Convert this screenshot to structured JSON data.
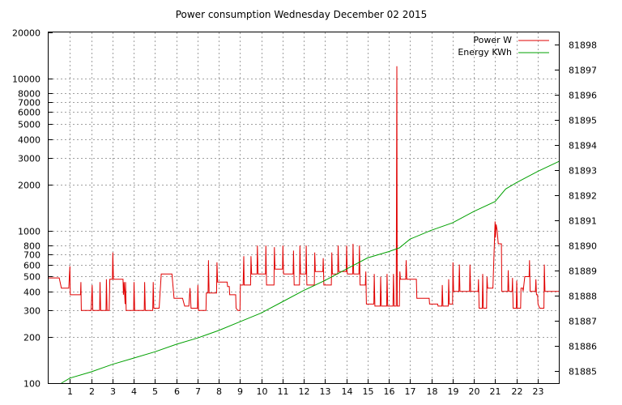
{
  "chart_data": {
    "type": "line",
    "title": "Power consumption Wednesday December 02 2015",
    "x": {
      "range": [
        0,
        24
      ],
      "ticks": [
        1,
        2,
        3,
        4,
        5,
        6,
        7,
        8,
        9,
        10,
        11,
        12,
        13,
        14,
        15,
        16,
        17,
        18,
        19,
        20,
        21,
        22,
        23
      ],
      "grid": true
    },
    "y_left": {
      "scale": "log",
      "range": [
        100,
        20000
      ],
      "ticks": [
        100,
        200,
        300,
        400,
        500,
        600,
        700,
        800,
        1000,
        2000,
        3000,
        4000,
        5000,
        6000,
        7000,
        8000,
        10000,
        20000
      ],
      "grid": true
    },
    "y_right": {
      "scale": "linear",
      "range": [
        81884.5,
        81898.5
      ],
      "ticks": [
        81885,
        81886,
        81887,
        81888,
        81889,
        81890,
        81891,
        81892,
        81893,
        81894,
        81895,
        81896,
        81897,
        81898
      ]
    },
    "legend": {
      "placement": "top-right"
    },
    "series": [
      {
        "name": "Power W",
        "axis": "left",
        "color": "#e00000",
        "points": [
          [
            0,
            490
          ],
          [
            0.5,
            490
          ],
          [
            0.6,
            420
          ],
          [
            0.95,
            420
          ],
          [
            1.0,
            585
          ],
          [
            1.02,
            380
          ],
          [
            1.5,
            380
          ],
          [
            1.52,
            460
          ],
          [
            1.54,
            300
          ],
          [
            2.0,
            300
          ],
          [
            2.05,
            440
          ],
          [
            2.08,
            300
          ],
          [
            2.4,
            300
          ],
          [
            2.42,
            460
          ],
          [
            2.45,
            300
          ],
          [
            2.7,
            300
          ],
          [
            2.72,
            480
          ],
          [
            2.75,
            300
          ],
          [
            2.85,
            300
          ],
          [
            2.88,
            480
          ],
          [
            3.0,
            480
          ],
          [
            3.02,
            720
          ],
          [
            3.05,
            480
          ],
          [
            3.5,
            480
          ],
          [
            3.52,
            380
          ],
          [
            3.55,
            460
          ],
          [
            3.6,
            330
          ],
          [
            3.62,
            460
          ],
          [
            3.65,
            300
          ],
          [
            4.0,
            300
          ],
          [
            4.02,
            460
          ],
          [
            4.05,
            300
          ],
          [
            4.5,
            300
          ],
          [
            4.52,
            460
          ],
          [
            4.55,
            300
          ],
          [
            4.9,
            300
          ],
          [
            4.92,
            460
          ],
          [
            4.95,
            310
          ],
          [
            5.2,
            310
          ],
          [
            5.3,
            520
          ],
          [
            5.8,
            520
          ],
          [
            5.9,
            360
          ],
          [
            6.3,
            360
          ],
          [
            6.4,
            320
          ],
          [
            6.6,
            320
          ],
          [
            6.65,
            420
          ],
          [
            6.7,
            310
          ],
          [
            7.0,
            310
          ],
          [
            7.02,
            440
          ],
          [
            7.05,
            300
          ],
          [
            7.4,
            300
          ],
          [
            7.42,
            390
          ],
          [
            7.5,
            390
          ],
          [
            7.52,
            640
          ],
          [
            7.55,
            390
          ],
          [
            7.9,
            390
          ],
          [
            7.92,
            620
          ],
          [
            7.95,
            460
          ],
          [
            8.4,
            460
          ],
          [
            8.42,
            430
          ],
          [
            8.5,
            430
          ],
          [
            8.52,
            380
          ],
          [
            8.8,
            380
          ],
          [
            8.82,
            310
          ],
          [
            8.9,
            300
          ],
          [
            9.0,
            300
          ],
          [
            9.02,
            440
          ],
          [
            9.05,
            440
          ],
          [
            9.15,
            440
          ],
          [
            9.18,
            680
          ],
          [
            9.2,
            440
          ],
          [
            9.5,
            440
          ],
          [
            9.52,
            680
          ],
          [
            9.55,
            520
          ],
          [
            9.8,
            520
          ],
          [
            9.82,
            800
          ],
          [
            9.85,
            520
          ],
          [
            10.2,
            520
          ],
          [
            10.22,
            800
          ],
          [
            10.25,
            440
          ],
          [
            10.6,
            440
          ],
          [
            10.62,
            780
          ],
          [
            10.65,
            560
          ],
          [
            11.0,
            560
          ],
          [
            11.02,
            800
          ],
          [
            11.05,
            520
          ],
          [
            11.5,
            520
          ],
          [
            11.52,
            740
          ],
          [
            11.55,
            440
          ],
          [
            11.8,
            440
          ],
          [
            11.82,
            800
          ],
          [
            11.85,
            520
          ],
          [
            12.1,
            520
          ],
          [
            12.12,
            800
          ],
          [
            12.15,
            440
          ],
          [
            12.5,
            440
          ],
          [
            12.52,
            720
          ],
          [
            12.55,
            540
          ],
          [
            12.9,
            540
          ],
          [
            12.92,
            660
          ],
          [
            12.95,
            440
          ],
          [
            13.3,
            440
          ],
          [
            13.32,
            720
          ],
          [
            13.35,
            520
          ],
          [
            13.6,
            520
          ],
          [
            13.62,
            800
          ],
          [
            13.65,
            540
          ],
          [
            14.0,
            540
          ],
          [
            14.02,
            800
          ],
          [
            14.05,
            520
          ],
          [
            14.3,
            520
          ],
          [
            14.32,
            820
          ],
          [
            14.35,
            520
          ],
          [
            14.6,
            520
          ],
          [
            14.62,
            800
          ],
          [
            14.65,
            440
          ],
          [
            14.9,
            440
          ],
          [
            14.92,
            540
          ],
          [
            14.95,
            330
          ],
          [
            15.3,
            330
          ],
          [
            15.32,
            520
          ],
          [
            15.35,
            320
          ],
          [
            15.6,
            320
          ],
          [
            15.62,
            500
          ],
          [
            15.65,
            320
          ],
          [
            15.9,
            320
          ],
          [
            15.92,
            520
          ],
          [
            15.95,
            320
          ],
          [
            16.2,
            320
          ],
          [
            16.22,
            520
          ],
          [
            16.25,
            320
          ],
          [
            16.35,
            320
          ],
          [
            16.38,
            12000
          ],
          [
            16.4,
            320
          ],
          [
            16.5,
            320
          ],
          [
            16.52,
            540
          ],
          [
            16.55,
            480
          ],
          [
            16.8,
            480
          ],
          [
            16.82,
            640
          ],
          [
            16.85,
            480
          ],
          [
            17.3,
            480
          ],
          [
            17.32,
            360
          ],
          [
            17.9,
            360
          ],
          [
            17.92,
            330
          ],
          [
            18.3,
            330
          ],
          [
            18.32,
            320
          ],
          [
            18.5,
            320
          ],
          [
            18.52,
            440
          ],
          [
            18.55,
            320
          ],
          [
            18.8,
            320
          ],
          [
            18.82,
            480
          ],
          [
            18.85,
            330
          ],
          [
            19.0,
            330
          ],
          [
            19.02,
            620
          ],
          [
            19.05,
            400
          ],
          [
            19.3,
            400
          ],
          [
            19.32,
            600
          ],
          [
            19.35,
            400
          ],
          [
            19.8,
            400
          ],
          [
            19.82,
            600
          ],
          [
            19.85,
            400
          ],
          [
            20.2,
            400
          ],
          [
            20.22,
            480
          ],
          [
            20.25,
            310
          ],
          [
            20.4,
            310
          ],
          [
            20.42,
            520
          ],
          [
            20.45,
            310
          ],
          [
            20.6,
            310
          ],
          [
            20.62,
            500
          ],
          [
            20.65,
            420
          ],
          [
            20.9,
            420
          ],
          [
            21.0,
            1150
          ],
          [
            21.02,
            900
          ],
          [
            21.05,
            1100
          ],
          [
            21.1,
            1000
          ],
          [
            21.15,
            820
          ],
          [
            21.3,
            820
          ],
          [
            21.32,
            400
          ],
          [
            21.6,
            400
          ],
          [
            21.62,
            550
          ],
          [
            21.65,
            400
          ],
          [
            21.8,
            400
          ],
          [
            21.82,
            490
          ],
          [
            21.85,
            310
          ],
          [
            22.0,
            310
          ],
          [
            22.02,
            470
          ],
          [
            22.05,
            310
          ],
          [
            22.2,
            310
          ],
          [
            22.22,
            420
          ],
          [
            22.3,
            420
          ],
          [
            22.32,
            400
          ],
          [
            22.4,
            500
          ],
          [
            22.6,
            500
          ],
          [
            22.62,
            640
          ],
          [
            22.65,
            400
          ],
          [
            22.9,
            400
          ],
          [
            22.92,
            480
          ],
          [
            22.95,
            380
          ],
          [
            23.0,
            380
          ],
          [
            23.02,
            330
          ],
          [
            23.1,
            310
          ],
          [
            23.3,
            310
          ],
          [
            23.32,
            600
          ],
          [
            23.35,
            400
          ],
          [
            24.0,
            400
          ]
        ]
      },
      {
        "name": "Energy KWh",
        "axis": "right",
        "color": "#00a000",
        "points": [
          [
            0.6,
            81884.5
          ],
          [
            1.0,
            81884.7
          ],
          [
            2.0,
            81884.95
          ],
          [
            3.0,
            81885.25
          ],
          [
            4.0,
            81885.5
          ],
          [
            5.0,
            81885.75
          ],
          [
            6.0,
            81886.05
          ],
          [
            7.0,
            81886.3
          ],
          [
            8.0,
            81886.6
          ],
          [
            9.0,
            81886.95
          ],
          [
            10.0,
            81887.3
          ],
          [
            11.0,
            81887.75
          ],
          [
            12.0,
            81888.2
          ],
          [
            13.0,
            81888.6
          ],
          [
            14.0,
            81889.05
          ],
          [
            15.0,
            81889.5
          ],
          [
            16.0,
            81889.75
          ],
          [
            16.5,
            81889.9
          ],
          [
            17.0,
            81890.25
          ],
          [
            18.0,
            81890.6
          ],
          [
            19.0,
            81890.9
          ],
          [
            20.0,
            81891.35
          ],
          [
            21.0,
            81891.75
          ],
          [
            21.5,
            81892.25
          ],
          [
            22.0,
            81892.5
          ],
          [
            23.0,
            81892.95
          ],
          [
            24.0,
            81893.35
          ]
        ]
      }
    ]
  }
}
